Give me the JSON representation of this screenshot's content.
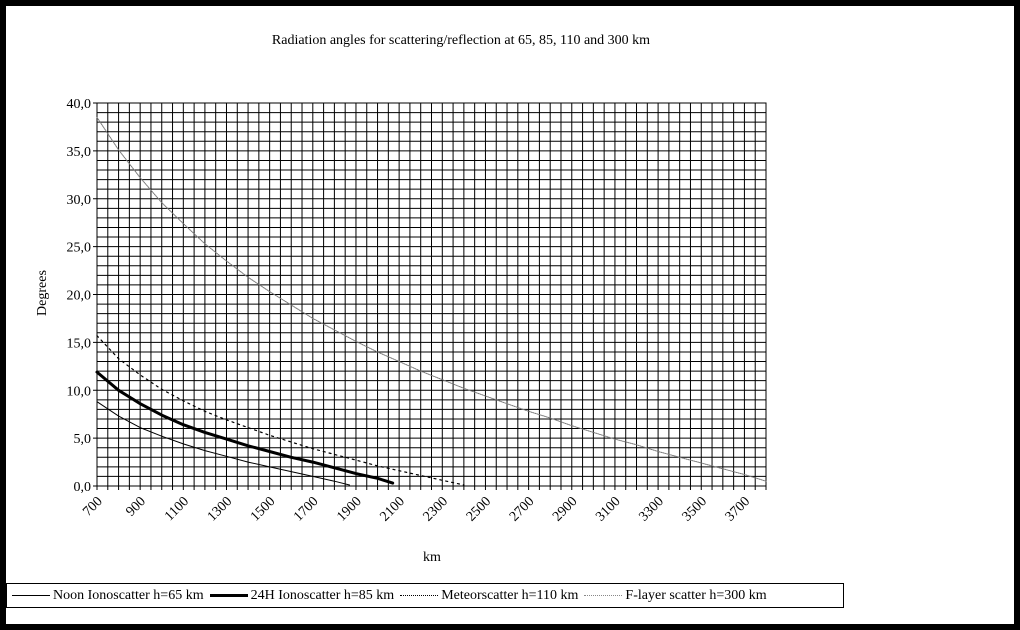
{
  "chart_data": {
    "type": "line",
    "title": "Radiation angles for scattering/reflection at 65, 85, 110 and 300 km",
    "xlabel": "km",
    "ylabel": "Degrees",
    "xlim": [
      700,
      3800
    ],
    "ylim": [
      0,
      40
    ],
    "x_ticks": [
      700,
      900,
      1100,
      1300,
      1500,
      1700,
      1900,
      2100,
      2300,
      2500,
      2700,
      2900,
      3100,
      3300,
      3500,
      3700
    ],
    "y_ticks": [
      "0,0",
      "5,0",
      "10,0",
      "15,0",
      "20,0",
      "25,0",
      "30,0",
      "35,0",
      "40,0"
    ],
    "grid": true,
    "legend_position": "bottom",
    "series": [
      {
        "name": "Noon Ionoscatter h=65 km",
        "style": "thin",
        "points": [
          [
            700,
            8.8
          ],
          [
            800,
            7.3
          ],
          [
            900,
            6.1
          ],
          [
            1000,
            5.2
          ],
          [
            1100,
            4.4
          ],
          [
            1200,
            3.7
          ],
          [
            1300,
            3.1
          ],
          [
            1400,
            2.5
          ],
          [
            1500,
            2.0
          ],
          [
            1600,
            1.5
          ],
          [
            1700,
            1.0
          ],
          [
            1800,
            0.5
          ],
          [
            1870,
            0.1
          ]
        ]
      },
      {
        "name": "24H Ionoscatter h=85 km",
        "style": "thick",
        "points": [
          [
            700,
            11.9
          ],
          [
            800,
            10.0
          ],
          [
            900,
            8.6
          ],
          [
            1000,
            7.4
          ],
          [
            1100,
            6.4
          ],
          [
            1200,
            5.6
          ],
          [
            1300,
            4.9
          ],
          [
            1400,
            4.2
          ],
          [
            1500,
            3.6
          ],
          [
            1600,
            3.0
          ],
          [
            1700,
            2.5
          ],
          [
            1800,
            1.9
          ],
          [
            1900,
            1.3
          ],
          [
            2000,
            0.8
          ],
          [
            2070,
            0.3
          ]
        ]
      },
      {
        "name": "Meteorscatter h=110 km",
        "style": "dotted",
        "points": [
          [
            700,
            15.7
          ],
          [
            800,
            13.3
          ],
          [
            900,
            11.6
          ],
          [
            1000,
            10.1
          ],
          [
            1100,
            8.9
          ],
          [
            1200,
            7.8
          ],
          [
            1300,
            6.9
          ],
          [
            1400,
            6.1
          ],
          [
            1500,
            5.3
          ],
          [
            1600,
            4.6
          ],
          [
            1700,
            3.9
          ],
          [
            1800,
            3.3
          ],
          [
            1900,
            2.7
          ],
          [
            2000,
            2.1
          ],
          [
            2100,
            1.6
          ],
          [
            2200,
            1.1
          ],
          [
            2300,
            0.6
          ],
          [
            2400,
            0.1
          ]
        ]
      },
      {
        "name": "F-layer scatter h=300 km",
        "style": "fine",
        "points": [
          [
            700,
            38.5
          ],
          [
            800,
            35.1
          ],
          [
            900,
            32.2
          ],
          [
            1000,
            29.6
          ],
          [
            1100,
            27.4
          ],
          [
            1200,
            25.3
          ],
          [
            1300,
            23.5
          ],
          [
            1400,
            21.8
          ],
          [
            1500,
            20.3
          ],
          [
            1600,
            18.9
          ],
          [
            1700,
            17.5
          ],
          [
            1800,
            16.3
          ],
          [
            1900,
            15.1
          ],
          [
            2000,
            14.0
          ],
          [
            2100,
            13.0
          ],
          [
            2200,
            12.0
          ],
          [
            2300,
            11.1
          ],
          [
            2400,
            10.2
          ],
          [
            2500,
            9.4
          ],
          [
            2600,
            8.6
          ],
          [
            2700,
            7.8
          ],
          [
            2800,
            7.1
          ],
          [
            2900,
            6.3
          ],
          [
            3000,
            5.6
          ],
          [
            3100,
            4.9
          ],
          [
            3200,
            4.3
          ],
          [
            3300,
            3.6
          ],
          [
            3400,
            3.0
          ],
          [
            3500,
            2.4
          ],
          [
            3600,
            1.8
          ],
          [
            3700,
            1.2
          ],
          [
            3800,
            0.5
          ]
        ]
      }
    ]
  }
}
